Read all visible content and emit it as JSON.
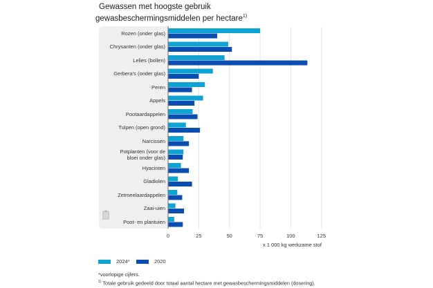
{
  "title": {
    "line1": "Gewassen met hoogste gebruik",
    "line2": "gewasbeschermingsmiddelen per hectare",
    "sup": "1)"
  },
  "colors": {
    "2024": "#0fa3d4",
    "2020": "#0b4db0",
    "panel": "#efefef",
    "grid": "#e3e3e3",
    "axis": "#777777"
  },
  "icons": {
    "doc": "document-icon"
  },
  "chart_data": {
    "type": "bar",
    "orientation": "horizontal",
    "title": "Gewassen met hoogste gebruik gewasbeschermingsmiddelen per hectare 1)",
    "xlabel": "x 1 000 kg werkzame stof",
    "ylabel": "",
    "xlim": [
      0,
      125
    ],
    "xticks": [
      0,
      25,
      50,
      75,
      100,
      125
    ],
    "xtick_labels": [
      "0",
      "25",
      "50",
      "75",
      "100",
      "125"
    ],
    "grid": true,
    "legend_position": "bottom-left",
    "categories": [
      "Rozen (onder glas)",
      "Chrysanten (onder glas)",
      "Lelies (bollen)",
      "Gerbera's (onder glas)",
      "Peren",
      "Appels",
      "Pootaardappelen",
      "Tulpen (open grond)",
      "Narcissen",
      "Potplanten (voor de bloei onder glas)",
      "Hyacinten",
      "Gladiolen",
      "Zetmeelaardappelen",
      "Zaai-uien",
      "Poot- en plantuien"
    ],
    "category_lines": [
      [
        "Rozen (onder glas)"
      ],
      [
        "Chrysanten (onder glas)"
      ],
      [
        "Lelies (bollen)"
      ],
      [
        "Gerbera's (onder glas)"
      ],
      [
        "Peren"
      ],
      [
        "Appels"
      ],
      [
        "Pootaardappelen"
      ],
      [
        "Tulpen (open grond)"
      ],
      [
        "Narcissen"
      ],
      [
        "Potplanten (voor de",
        "bloei onder glas)"
      ],
      [
        "Hyacinten"
      ],
      [
        "Gladiolen"
      ],
      [
        "Zetmeelaardappelen"
      ],
      [
        "Zaai-uien"
      ],
      [
        "Poot- en plantuien"
      ]
    ],
    "series": [
      {
        "name": "2024*",
        "key": "2024",
        "values": [
          75,
          49,
          46,
          36.5,
          30,
          28.5,
          20,
          14.5,
          12.5,
          12.5,
          10.5,
          8,
          7.5,
          6,
          5
        ]
      },
      {
        "name": "2020",
        "key": "2020",
        "values": [
          40,
          52,
          113.5,
          25,
          19.5,
          21.5,
          24,
          26,
          17,
          12,
          17,
          19.5,
          11.5,
          13,
          12
        ]
      }
    ]
  },
  "legend": [
    {
      "label": "2024*"
    },
    {
      "label": "2020"
    }
  ],
  "notes": {
    "provisional": "*voorlopige cijfers.",
    "footnote_mark": "1)",
    "footnote": "Totale gebruik gedeeld door totaal aantal hectare met gewasbeschermingsmiddelen (dosering)."
  }
}
